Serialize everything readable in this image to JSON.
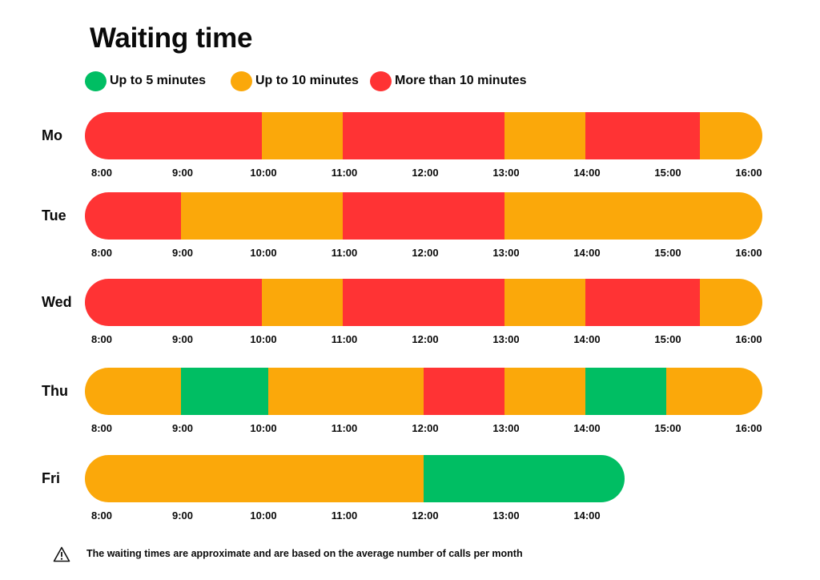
{
  "chart_data": {
    "type": "timeline",
    "title": "Waiting time",
    "legend": [
      {
        "key": "low",
        "label": "Up to 5 minutes",
        "color": "#00BE63"
      },
      {
        "key": "mid",
        "label": "Up to 10 minutes",
        "color": "#FBA80A"
      },
      {
        "key": "high",
        "label": "More than 10 minutes",
        "color": "#FF3334"
      }
    ],
    "legend_placement": "top-left",
    "days": [
      {
        "label": "Mo",
        "ticks": [
          "8:00",
          "9:00",
          "10:00",
          "11:00",
          "12:00",
          "13:00",
          "14:00",
          "15:00",
          "16:00"
        ],
        "segments": [
          {
            "start": 8.0,
            "end": 10.0,
            "level": "high"
          },
          {
            "start": 10.0,
            "end": 11.0,
            "level": "mid"
          },
          {
            "start": 11.0,
            "end": 13.0,
            "level": "high"
          },
          {
            "start": 13.0,
            "end": 14.0,
            "level": "mid"
          },
          {
            "start": 14.0,
            "end": 15.42,
            "level": "high"
          },
          {
            "start": 15.42,
            "end": 16.0,
            "level": "mid"
          }
        ]
      },
      {
        "label": "Tue",
        "ticks": [
          "8:00",
          "9:00",
          "10:00",
          "11:00",
          "12:00",
          "13:00",
          "14:00",
          "15:00",
          "16:00"
        ],
        "segments": [
          {
            "start": 8.0,
            "end": 9.0,
            "level": "high"
          },
          {
            "start": 9.0,
            "end": 11.0,
            "level": "mid"
          },
          {
            "start": 11.0,
            "end": 13.0,
            "level": "high"
          },
          {
            "start": 13.0,
            "end": 16.0,
            "level": "mid"
          }
        ]
      },
      {
        "label": "Wed",
        "ticks": [
          "8:00",
          "9:00",
          "10:00",
          "11:00",
          "12:00",
          "13:00",
          "14:00",
          "15:00",
          "16:00"
        ],
        "segments": [
          {
            "start": 8.0,
            "end": 10.0,
            "level": "high"
          },
          {
            "start": 10.0,
            "end": 11.0,
            "level": "mid"
          },
          {
            "start": 11.0,
            "end": 13.0,
            "level": "high"
          },
          {
            "start": 13.0,
            "end": 14.0,
            "level": "mid"
          },
          {
            "start": 14.0,
            "end": 15.42,
            "level": "high"
          },
          {
            "start": 15.42,
            "end": 16.0,
            "level": "mid"
          }
        ]
      },
      {
        "label": "Thu",
        "ticks": [
          "8:00",
          "9:00",
          "10:00",
          "11:00",
          "12:00",
          "13:00",
          "14:00",
          "15:00",
          "16:00"
        ],
        "segments": [
          {
            "start": 8.0,
            "end": 9.0,
            "level": "mid"
          },
          {
            "start": 9.0,
            "end": 10.08,
            "level": "low"
          },
          {
            "start": 10.08,
            "end": 12.0,
            "level": "mid"
          },
          {
            "start": 12.0,
            "end": 13.0,
            "level": "high"
          },
          {
            "start": 13.0,
            "end": 14.0,
            "level": "mid"
          },
          {
            "start": 14.0,
            "end": 15.0,
            "level": "low"
          },
          {
            "start": 15.0,
            "end": 16.0,
            "level": "mid"
          }
        ]
      },
      {
        "label": "Fri",
        "ticks": [
          "8:00",
          "9:00",
          "10:00",
          "11:00",
          "12:00",
          "13:00",
          "14:00"
        ],
        "segments": [
          {
            "start": 8.0,
            "end": 12.0,
            "level": "mid"
          },
          {
            "start": 12.0,
            "end": 14.3,
            "level": "low"
          }
        ]
      }
    ],
    "x_unit": "hour of day",
    "xlim": [
      8,
      16
    ]
  },
  "footnote": {
    "icon": "warning-icon",
    "text": "The waiting times are approximate and are based on the average number of calls per month"
  }
}
